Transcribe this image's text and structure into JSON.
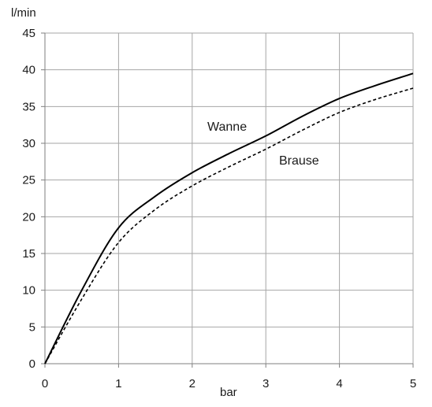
{
  "chart_data": {
    "type": "line",
    "xlabel": "bar",
    "ylabel": "l/min",
    "xlim": [
      0,
      5
    ],
    "ylim": [
      0,
      45
    ],
    "xticks": [
      0,
      1,
      2,
      3,
      4,
      5
    ],
    "yticks": [
      0,
      5,
      10,
      15,
      20,
      25,
      30,
      35,
      40,
      45
    ],
    "grid": true,
    "series": [
      {
        "name": "Wanne",
        "line_style": "solid",
        "color": "#000000",
        "points": [
          [
            0,
            0
          ],
          [
            0.5,
            10
          ],
          [
            1.0,
            18.5
          ],
          [
            1.5,
            22.8
          ],
          [
            2.0,
            26
          ],
          [
            2.5,
            28.6
          ],
          [
            3.0,
            31
          ],
          [
            3.5,
            33.7
          ],
          [
            4.0,
            36.1
          ],
          [
            4.5,
            37.9
          ],
          [
            5.0,
            39.5
          ]
        ]
      },
      {
        "name": "Brause",
        "line_style": "dashed",
        "color": "#000000",
        "points": [
          [
            0,
            0
          ],
          [
            0.5,
            8.8
          ],
          [
            1.0,
            16.5
          ],
          [
            1.5,
            21
          ],
          [
            2.0,
            24.2
          ],
          [
            2.5,
            26.8
          ],
          [
            3.0,
            29.2
          ],
          [
            3.5,
            31.8
          ],
          [
            4.0,
            34.2
          ],
          [
            4.5,
            36
          ],
          [
            5.0,
            37.5
          ]
        ]
      }
    ]
  }
}
